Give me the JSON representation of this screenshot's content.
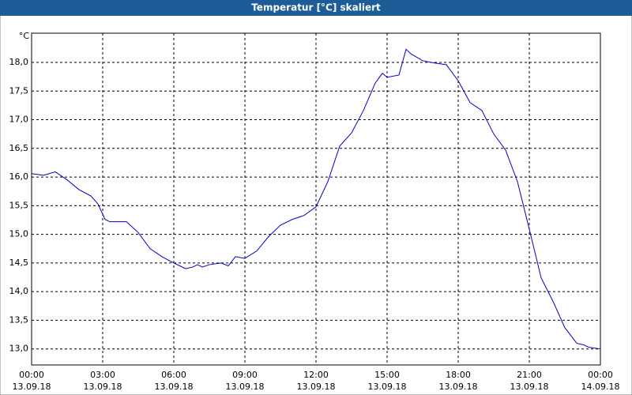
{
  "chart_data": {
    "type": "line",
    "title": "Temperatur [°C] skaliert",
    "y_label": "°C",
    "x": [
      0,
      0.5,
      1,
      1.5,
      2,
      2.5,
      2.8,
      3.1,
      3.3,
      4,
      4.5,
      5,
      5.5,
      6,
      6.5,
      6.8,
      7,
      7.2,
      7.5,
      8,
      8.3,
      8.6,
      9,
      9.5,
      10,
      10.5,
      11,
      11.5,
      12,
      12.5,
      13,
      13.5,
      14,
      14.5,
      14.8,
      15,
      15.5,
      15.8,
      16,
      16.5,
      17,
      17.5,
      18,
      18.5,
      19,
      19.5,
      20,
      20.5,
      21,
      21.5,
      22,
      22.5,
      23,
      23.3,
      23.5,
      24
    ],
    "series": [
      {
        "name": "Temperatur",
        "color": "#0000c8",
        "values": [
          16.06,
          16.03,
          16.09,
          15.95,
          15.78,
          15.67,
          15.53,
          15.26,
          15.22,
          15.22,
          15.03,
          14.75,
          14.61,
          14.5,
          14.4,
          14.43,
          14.47,
          14.43,
          14.47,
          14.5,
          14.45,
          14.61,
          14.58,
          14.71,
          14.96,
          15.16,
          15.26,
          15.33,
          15.48,
          15.92,
          16.54,
          16.77,
          17.16,
          17.64,
          17.81,
          17.74,
          17.78,
          18.23,
          18.15,
          18.03,
          17.99,
          17.96,
          17.68,
          17.3,
          17.16,
          16.75,
          16.47,
          15.92,
          15.09,
          14.24,
          13.83,
          13.37,
          13.1,
          13.07,
          13.03,
          13.0
        ]
      }
    ],
    "xlim": [
      0,
      24
    ],
    "xticks": [
      {
        "value": 0,
        "label": "00:00",
        "date": "13.09.18"
      },
      {
        "value": 3,
        "label": "03:00",
        "date": "13.09.18"
      },
      {
        "value": 6,
        "label": "06:00",
        "date": "13.09.18"
      },
      {
        "value": 9,
        "label": "09:00",
        "date": "13.09.18"
      },
      {
        "value": 12,
        "label": "12:00",
        "date": "13.09.18"
      },
      {
        "value": 15,
        "label": "15:00",
        "date": "13.09.18"
      },
      {
        "value": 18,
        "label": "18:00",
        "date": "13.09.18"
      },
      {
        "value": 21,
        "label": "21:00",
        "date": "13.09.18"
      },
      {
        "value": 24,
        "label": "00:00",
        "date": "14.09.18"
      }
    ],
    "ylim": [
      12.72,
      18.51
    ],
    "yticks": [
      {
        "value": 13,
        "label": "13,0"
      },
      {
        "value": 13.5,
        "label": "13,5"
      },
      {
        "value": 14,
        "label": "14,0"
      },
      {
        "value": 14.5,
        "label": "14,5"
      },
      {
        "value": 15,
        "label": "15,0"
      },
      {
        "value": 15.5,
        "label": "15,5"
      },
      {
        "value": 16,
        "label": "16,0"
      },
      {
        "value": 16.5,
        "label": "16,5"
      },
      {
        "value": 17,
        "label": "17,0"
      },
      {
        "value": 17.5,
        "label": "17,5"
      },
      {
        "value": 18,
        "label": "18,0"
      }
    ],
    "grid": true
  }
}
